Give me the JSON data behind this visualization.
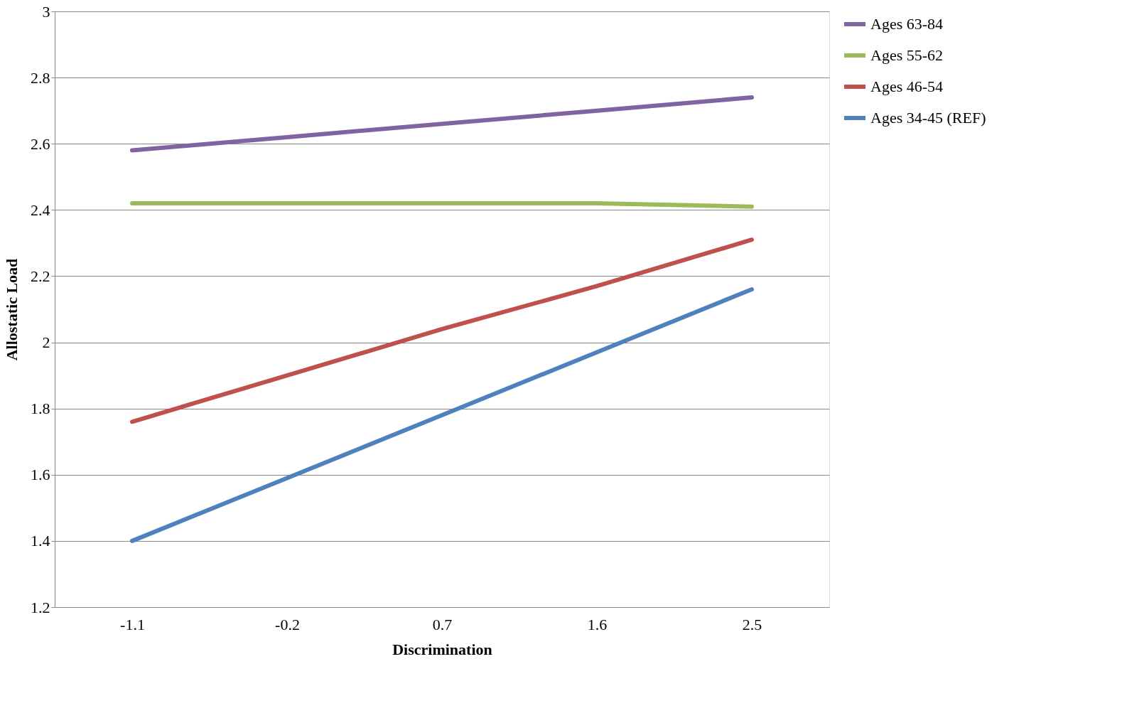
{
  "chart_data": {
    "type": "line",
    "xlabel": "Discrimination",
    "ylabel": "Allostatic Load",
    "categories": [
      "-1.1",
      "-0.2",
      "0.7",
      "1.6",
      "2.5"
    ],
    "series": [
      {
        "name": "Ages 63-84",
        "color": "#8064a2",
        "values": [
          2.58,
          2.62,
          2.66,
          2.7,
          2.74
        ]
      },
      {
        "name": "Ages 55-62",
        "color": "#9bbb59",
        "values": [
          2.42,
          2.42,
          2.42,
          2.42,
          2.41
        ]
      },
      {
        "name": "Ages 46-54",
        "color": "#c0504d",
        "values": [
          1.76,
          1.9,
          2.04,
          2.17,
          2.31
        ]
      },
      {
        "name": "Ages 34-45 (REF)",
        "color": "#4f81bd",
        "values": [
          1.4,
          1.59,
          1.78,
          1.97,
          2.16
        ]
      }
    ],
    "ylim": [
      1.2,
      3
    ],
    "yticks": [
      1.2,
      1.4,
      1.6,
      1.8,
      2,
      2.2,
      2.4,
      2.6,
      2.8,
      3
    ],
    "grid": "y",
    "legend": "right",
    "marker": "none",
    "line_style": "solid"
  }
}
